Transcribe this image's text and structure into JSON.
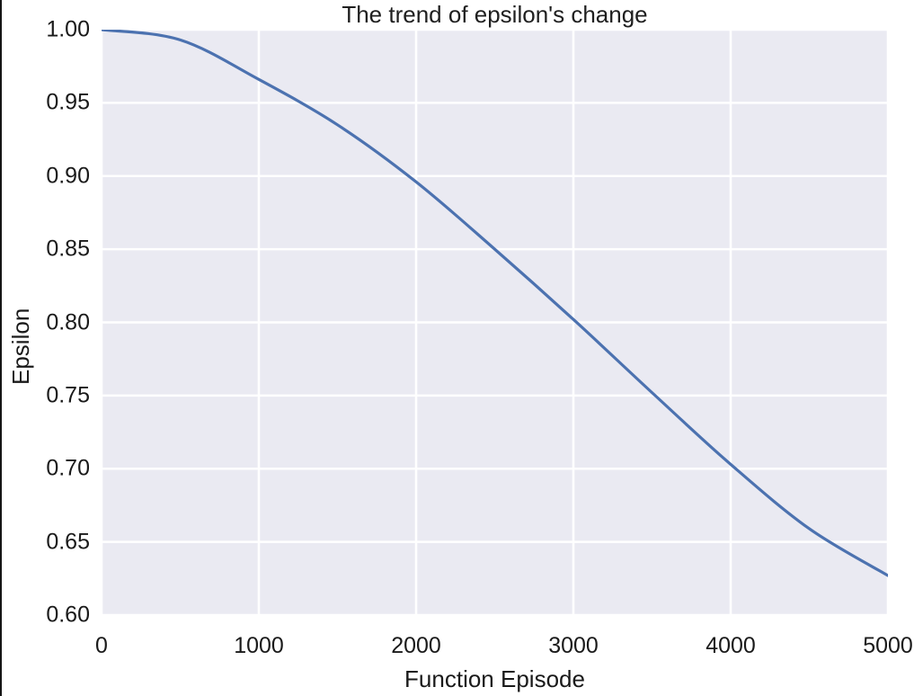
{
  "chart_data": {
    "type": "line",
    "title": "The trend of epsilon's change",
    "xlabel": "Function Episode",
    "ylabel": "Epsilon",
    "xlim": [
      0,
      5000
    ],
    "ylim": [
      0.6,
      1.0
    ],
    "x_ticks": [
      0,
      1000,
      2000,
      3000,
      4000,
      5000
    ],
    "y_ticks": [
      0.6,
      0.65,
      0.7,
      0.75,
      0.8,
      0.85,
      0.9,
      0.95,
      1.0
    ],
    "grid": true,
    "legend": false,
    "series": [
      {
        "name": "epsilon",
        "color": "#4C72B0",
        "x": [
          0,
          500,
          1000,
          1500,
          2000,
          2500,
          3000,
          3500,
          4000,
          4500,
          5000
        ],
        "y": [
          1.0,
          0.993,
          0.966,
          0.935,
          0.896,
          0.85,
          0.802,
          0.752,
          0.703,
          0.659,
          0.627
        ]
      }
    ],
    "styles": {
      "plot_background": "#EAEAF2",
      "grid_color": "#FFFFFF",
      "line_color": "#4C72B0",
      "text_color": "#1A1A1A",
      "figure_background": "#FFFFFF"
    }
  }
}
